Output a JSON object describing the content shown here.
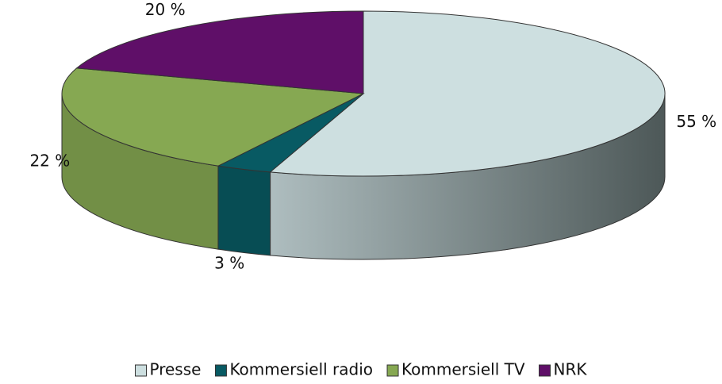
{
  "chart_data": {
    "type": "pie3d",
    "categories": [
      "Presse",
      "Kommersiell radio",
      "Kommersiell TV",
      "NRK"
    ],
    "values": [
      55,
      3,
      22,
      20
    ],
    "value_labels": [
      "55 %",
      "3 %",
      "22 %",
      "20 %"
    ],
    "colors": [
      "#cddfe0",
      "#085a63",
      "#86a852",
      "#5f0f68"
    ],
    "legend": "bottom"
  }
}
